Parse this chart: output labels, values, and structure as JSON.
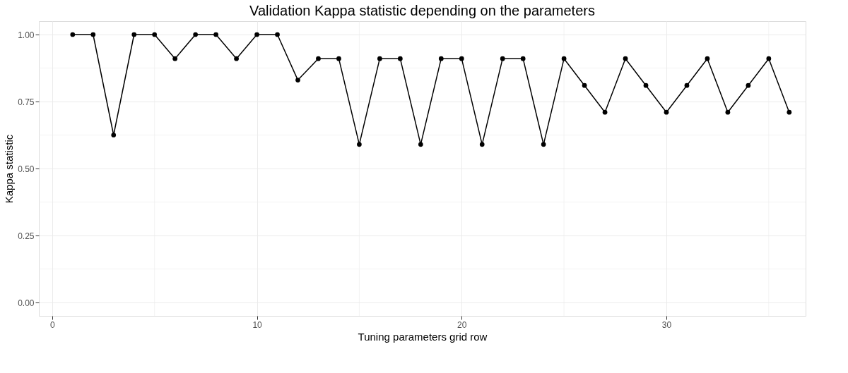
{
  "chart_data": {
    "type": "line",
    "title": "Validation Kappa statistic depending on the parameters",
    "xlabel": "Tuning parameters grid row",
    "ylabel": "Kappa statistic",
    "x": [
      1,
      2,
      3,
      4,
      5,
      6,
      7,
      8,
      9,
      10,
      11,
      12,
      13,
      14,
      15,
      16,
      17,
      18,
      19,
      20,
      21,
      22,
      23,
      24,
      25,
      26,
      27,
      28,
      29,
      30,
      31,
      32,
      33,
      34,
      35,
      36
    ],
    "series": [
      {
        "color": "#000000",
        "values": [
          1.0,
          1.0,
          0.625,
          1.0,
          1.0,
          0.91,
          1.0,
          1.0,
          0.91,
          1.0,
          1.0,
          0.83,
          0.91,
          0.91,
          0.59,
          0.91,
          0.91,
          0.59,
          0.91,
          0.91,
          0.59,
          0.91,
          0.91,
          0.59,
          0.91,
          0.81,
          0.71,
          0.91,
          0.81,
          0.71,
          0.81,
          0.91,
          0.71,
          0.81,
          0.91,
          0.71
        ]
      }
    ],
    "xlim": [
      -0.65,
      36.8
    ],
    "ylim": [
      -0.05,
      1.05
    ],
    "xticks": [
      0,
      10,
      20,
      30
    ],
    "yticks": [
      {
        "value": 0,
        "label": "0.00"
      },
      {
        "value": 0.25,
        "label": "0.25"
      },
      {
        "value": 0.5,
        "label": "0.50"
      },
      {
        "value": 0.75,
        "label": "0.75"
      },
      {
        "value": 1,
        "label": "1.00"
      }
    ],
    "grid": true,
    "marker": "circle",
    "line_style": "solid"
  }
}
